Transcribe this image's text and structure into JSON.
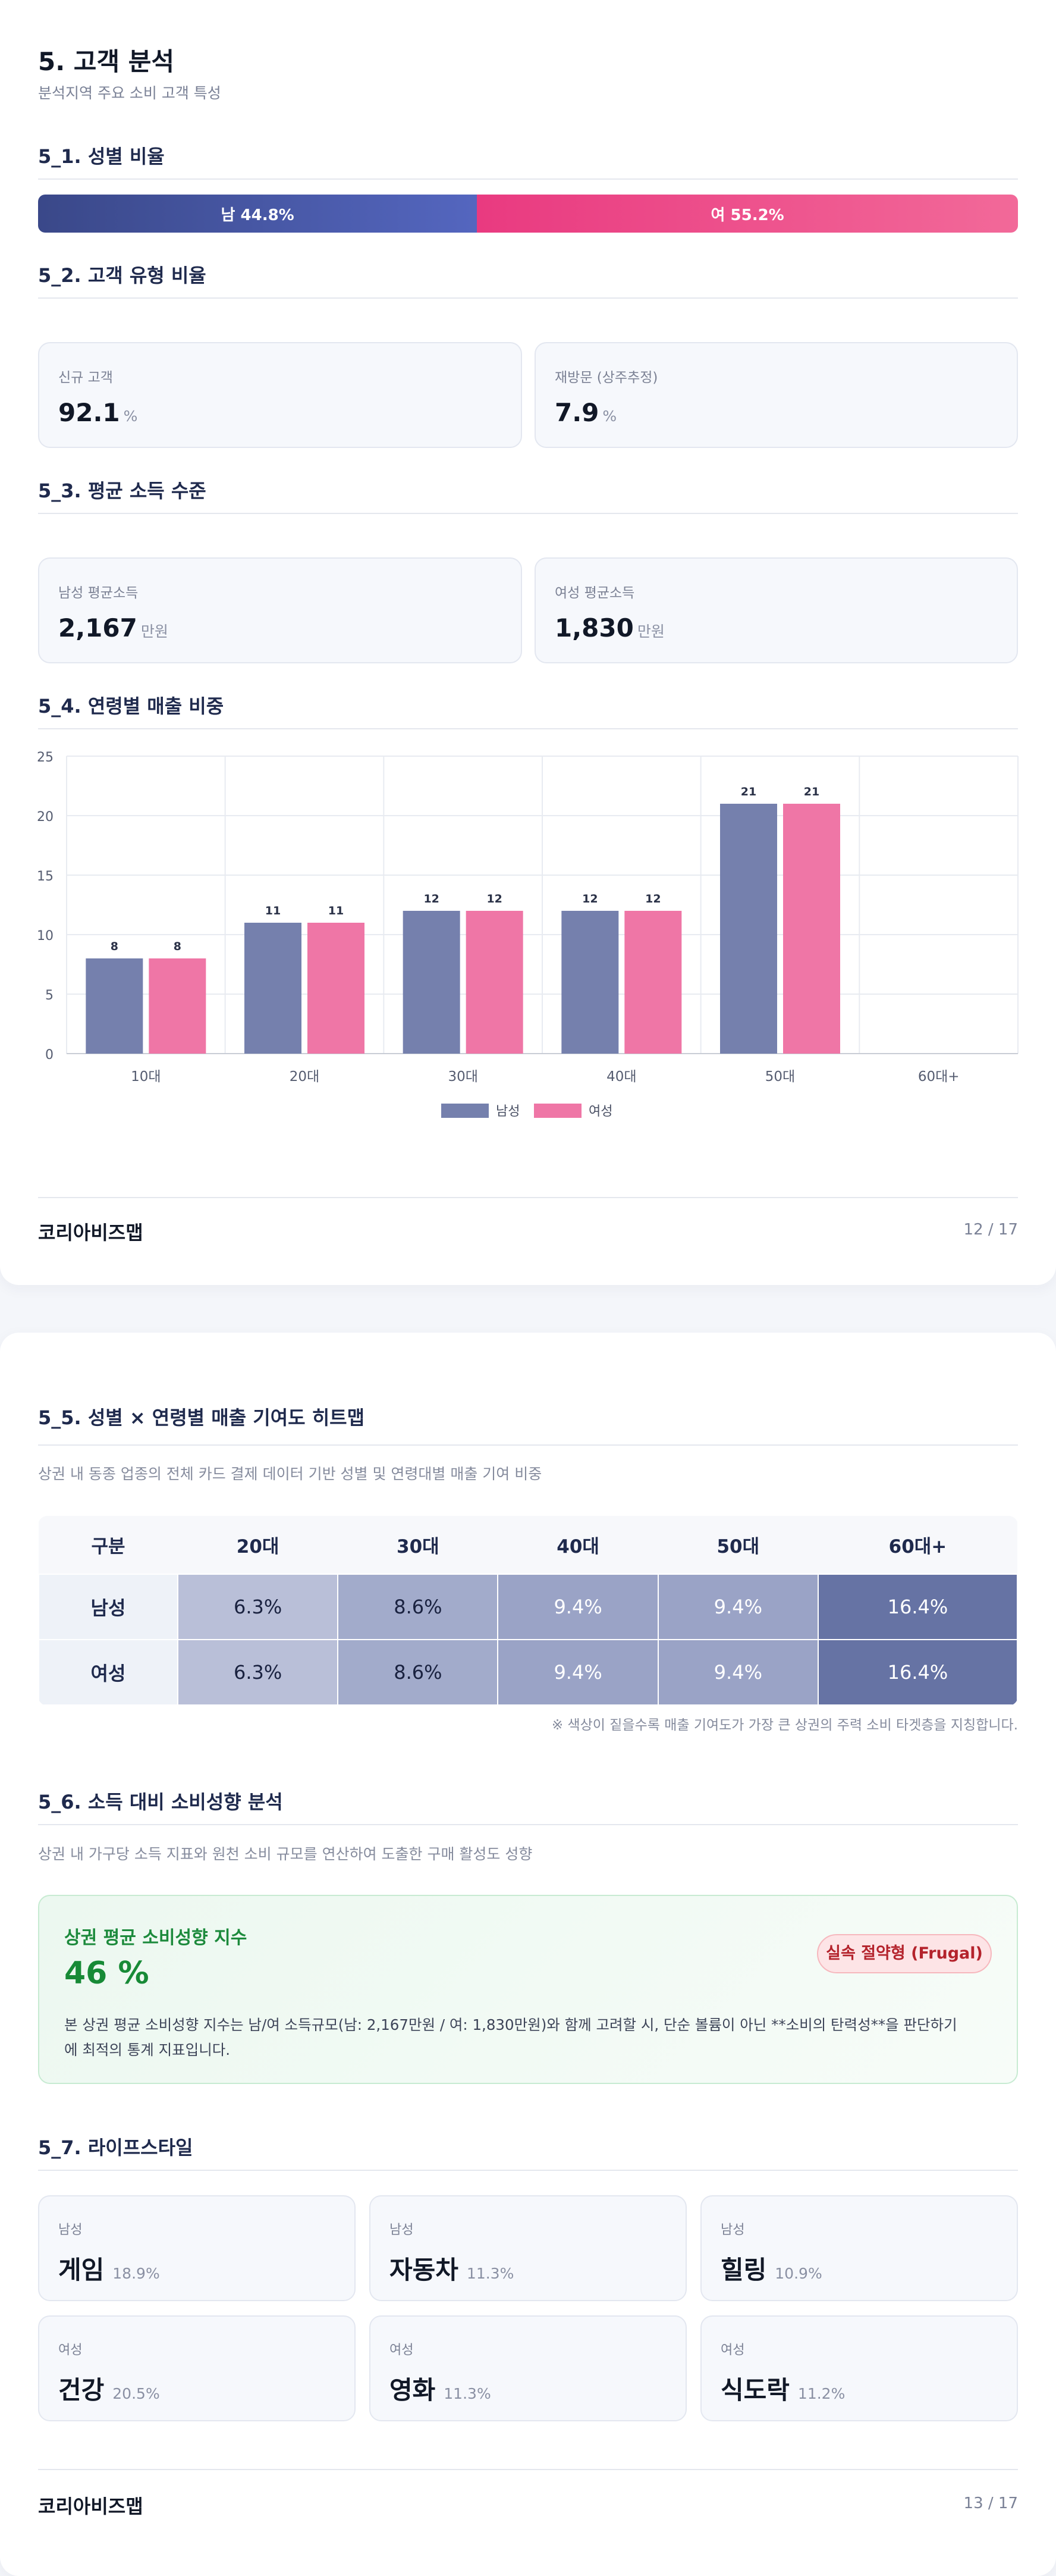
{
  "page1": {
    "title": "5. 고객 분석",
    "subtitle": "분석지역 주요 소비 고객 특성",
    "gender_section": {
      "title": "5_1. 성별 비율",
      "male": {
        "label": "남 44.8%",
        "percent": 44.8,
        "color": "#3b4a8f"
      },
      "female": {
        "label": "여 55.2%",
        "percent": 55.2,
        "color": "#ea4a86"
      }
    },
    "customer_type_section": {
      "title": "5_2. 고객 유형 비율",
      "cards": [
        {
          "label": "신규 고객",
          "value": "92.1",
          "unit": "%"
        },
        {
          "label": "재방문 (상주추정)",
          "value": "7.9",
          "unit": "%"
        }
      ]
    },
    "income_section": {
      "title": "5_3. 평균 소득 수준",
      "cards": [
        {
          "label": "남성 평균소득",
          "value": "2,167",
          "unit": "만원"
        },
        {
          "label": "여성 평균소득",
          "value": "1,830",
          "unit": "만원"
        }
      ]
    },
    "age_sales_section": {
      "title": "5_4. 연령별 매출 비중"
    },
    "footer": {
      "brand": "코리아비즈맵",
      "page": "12 / 17"
    }
  },
  "chart_data": {
    "type": "bar",
    "categories": [
      "10대",
      "20대",
      "30대",
      "40대",
      "50대",
      "60대+"
    ],
    "series": [
      {
        "name": "남성",
        "values": [
          8,
          11,
          12,
          12,
          21,
          null
        ],
        "color": "#7580ad"
      },
      {
        "name": "여성",
        "values": [
          8,
          11,
          12,
          12,
          21,
          null
        ],
        "color": "#ef76a6"
      }
    ],
    "yticks": [
      "0",
      "5",
      "10",
      "15",
      "20",
      "25"
    ],
    "ylim": [
      0,
      25
    ],
    "grid": true,
    "legend": "bottom-center"
  },
  "page2": {
    "heatmap_section": {
      "title": "5_5. 성별 × 연령별 매출 기여도 히트맵",
      "description": "상권 내 동종 업종의 전체 카드 결제 데이터 기반 성별 및 연령대별 매출 기여 비중",
      "columns": [
        "구분",
        "20대",
        "30대",
        "40대",
        "50대",
        "60대+"
      ],
      "rows": [
        {
          "label": "남성",
          "cells": [
            "6.3%",
            "8.6%",
            "9.4%",
            "9.4%",
            "16.4%"
          ]
        },
        {
          "label": "여성",
          "cells": [
            "6.3%",
            "8.6%",
            "9.4%",
            "9.4%",
            "16.4%"
          ]
        }
      ],
      "cell_colors": [
        "#b9bfd8",
        "#a2abcb",
        "#9aa3c6",
        "#9aa3c6",
        "#6673a4"
      ],
      "note": "※ 색상이 짙을수록 매출 기여도가 가장 큰 상권의 주력 소비 타겟층을 지칭합니다."
    },
    "propensity_section": {
      "title": "5_6. 소득 대비 소비성향 분석",
      "description": "상권 내 가구당 소득 지표와 원천 소비 규모를 연산하여 도출한 구매 활성도 성향",
      "card_label": "상권 평균 소비성향 지수",
      "card_value": "46 %",
      "badge": "실속 절약형 (Frugal)",
      "body_line1": "본 상권 평균 소비성향 지수는 남/여 소득규모(남: 2,167만원 / 여: 1,830만원)와 함께 고려할 시, 단순 볼륨이 아닌 **소비의 탄력성**을 판단하기",
      "body_line2": "에 최적의 통계 지표입니다."
    },
    "lifestyle_section": {
      "title": "5_7. 라이프스타일",
      "cards": [
        {
          "gender": "남성",
          "name": "게임",
          "pct": "18.9%"
        },
        {
          "gender": "남성",
          "name": "자동차",
          "pct": "11.3%"
        },
        {
          "gender": "남성",
          "name": "힐링",
          "pct": "10.9%"
        },
        {
          "gender": "여성",
          "name": "건강",
          "pct": "20.5%"
        },
        {
          "gender": "여성",
          "name": "영화",
          "pct": "11.3%"
        },
        {
          "gender": "여성",
          "name": "식도락",
          "pct": "11.2%"
        }
      ]
    },
    "footer": {
      "brand": "코리아비즈맵",
      "page": "13 / 17"
    }
  }
}
